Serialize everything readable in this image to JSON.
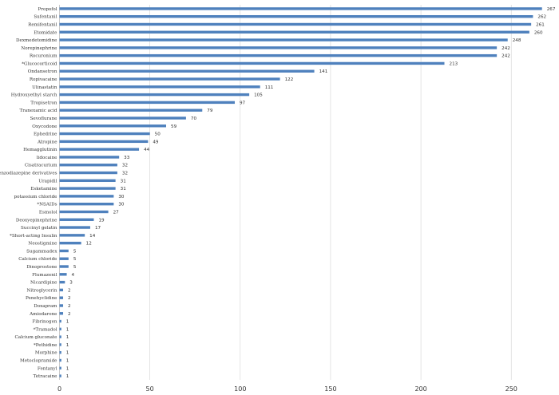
{
  "chart_data": {
    "type": "bar",
    "orientation": "horizontal",
    "title": "",
    "xlabel": "",
    "ylabel": "",
    "xlim": [
      0,
      280
    ],
    "xticks": [
      0,
      50,
      100,
      150,
      200,
      250
    ],
    "grid": true,
    "bar_color": "#4f81bd",
    "categories": [
      "Propofol",
      "Sufentanil",
      "Remifentanil",
      "Etomidate",
      "Dexmedetomidine",
      "Norepinephrine",
      "Rocuronium",
      "*Glucocorticoid",
      "Ondansetron",
      "Ropivacaine",
      "Ulinastatin",
      "Hydroxyethyl starch",
      "Tropisetron",
      "Tranexamic acid",
      "Sevoflurane",
      "Oxycodone",
      "Ephedrine",
      "Atropine",
      "Hemagglutinin",
      "lidocaine",
      "Cisatracurium",
      "*Benzodiazepine derivatives",
      "Urapidil",
      "Esketamine",
      "potassium chloride",
      "*NSAIDs",
      "Esmolol",
      "Deoxyepinephrine",
      "Succinyl gelatin",
      "*Short-acting Insulin",
      "Neostigmine",
      "Sugammadex",
      "Calcium chloride",
      "Dinoprostone",
      "Flumazenil",
      "Nicardipine",
      "Nitroglycerin",
      "Penehyclidine",
      "Doxapram",
      "Amiodarone",
      "Fibrinogen",
      "*Tramadol",
      "Calcium gluconate",
      "*Pethidine",
      "Morphine",
      "Metoclopramide",
      "Fentanyl",
      "Tetracaine"
    ],
    "values": [
      267,
      262,
      261,
      260,
      248,
      242,
      242,
      213,
      141,
      122,
      111,
      105,
      97,
      79,
      70,
      59,
      50,
      49,
      44,
      33,
      32,
      32,
      31,
      31,
      30,
      30,
      27,
      19,
      17,
      14,
      12,
      5,
      5,
      5,
      4,
      3,
      2,
      2,
      2,
      2,
      1,
      1,
      1,
      1,
      1,
      1,
      1,
      1
    ]
  }
}
